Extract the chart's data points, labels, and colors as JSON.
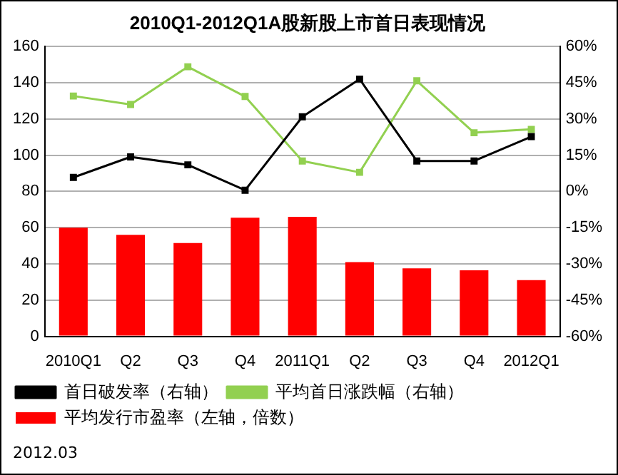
{
  "chart_data": {
    "type": "bar",
    "title": "2010Q1-2012Q1A股新股上市首日表现情况",
    "categories": [
      "2010Q1",
      "Q2",
      "Q3",
      "Q4",
      "2011Q1",
      "Q2",
      "Q3",
      "Q4",
      "2012Q1"
    ],
    "series": [
      {
        "name": "平均发行市盈率（左轴，倍数）",
        "color": "#ff0000",
        "values": [
          60,
          56,
          51.5,
          65.5,
          66,
          41,
          37.5,
          36.5,
          31
        ]
      },
      {
        "name": "首日破发率（右轴）",
        "type": "line",
        "axis": "y2",
        "color": "#000000",
        "values": [
          5.8,
          14.3,
          11,
          0.5,
          30.9,
          46.5,
          12.6,
          12.6,
          22.7
        ]
      },
      {
        "name": "平均首日涨跌幅（右轴）",
        "type": "line",
        "axis": "y2",
        "color": "#92d050",
        "values": [
          39.5,
          36,
          51.6,
          39.3,
          12.6,
          7.9,
          45.8,
          24.3,
          25.7
        ]
      }
    ],
    "ylim": [
      0,
      160
    ],
    "yticks": [
      0,
      20,
      40,
      60,
      80,
      100,
      120,
      140,
      160
    ],
    "y2lim": [
      -60,
      60
    ],
    "y2ticks": [
      {
        "value": -60,
        "label": "-60%"
      },
      {
        "value": -45,
        "label": "-45%"
      },
      {
        "value": -30,
        "label": "-30%"
      },
      {
        "value": -15,
        "label": "-15%"
      },
      {
        "value": 0,
        "label": "0%"
      },
      {
        "value": 15,
        "label": "15%"
      },
      {
        "value": 30,
        "label": "30%"
      },
      {
        "value": 45,
        "label": "45%"
      },
      {
        "value": 60,
        "label": "60%"
      }
    ],
    "grid": "y",
    "legend": "bottom",
    "marker": "square",
    "line_style": "solid",
    "annotations": [
      "2012.03"
    ]
  }
}
